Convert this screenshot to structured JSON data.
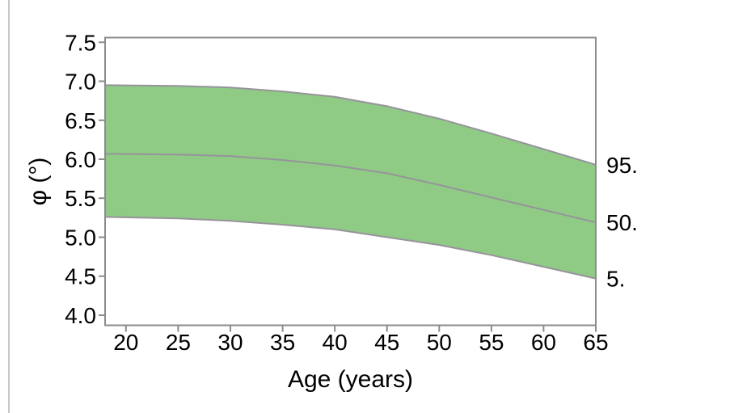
{
  "chart_data": {
    "type": "area",
    "title": "",
    "xlabel": "Age (years)",
    "ylabel": "φ (°)",
    "xlim": [
      18,
      65
    ],
    "ylim": [
      3.87,
      7.56
    ],
    "x_ticks": [
      20,
      25,
      30,
      35,
      40,
      45,
      50,
      55,
      60,
      65
    ],
    "y_ticks": [
      4.0,
      4.5,
      5.0,
      5.5,
      6.0,
      6.5,
      7.0,
      7.5
    ],
    "grid": false,
    "legend_position": "right-edge-labels",
    "x": [
      18,
      25,
      30,
      35,
      40,
      45,
      50,
      55,
      60,
      65
    ],
    "series": [
      {
        "name": "95.",
        "percentile": 95,
        "role": "band-upper",
        "values": [
          6.95,
          6.94,
          6.92,
          6.87,
          6.8,
          6.68,
          6.52,
          6.33,
          6.13,
          5.93
        ]
      },
      {
        "name": "50.",
        "percentile": 50,
        "role": "median",
        "values": [
          6.07,
          6.06,
          6.04,
          5.99,
          5.92,
          5.82,
          5.67,
          5.51,
          5.35,
          5.19
        ]
      },
      {
        "name": "5.",
        "percentile": 5,
        "role": "band-lower",
        "values": [
          5.26,
          5.24,
          5.21,
          5.16,
          5.1,
          5.0,
          4.9,
          4.77,
          4.62,
          4.47
        ]
      }
    ],
    "colors": {
      "band_fill": "#8fcb85",
      "curve_line": "#96939b",
      "axis_frame": "#8c8c8c",
      "text": "#000000",
      "screen_edge_line": "#c8c8c8"
    }
  }
}
